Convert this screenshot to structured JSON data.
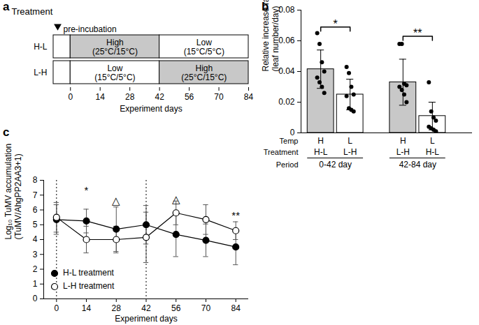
{
  "chart_data": [
    {
      "title": "a",
      "type": "gantt",
      "row_header": "Treatment",
      "rows": [
        "H-L",
        "L-H"
      ],
      "preincubation": {
        "label": "pre-incubation",
        "start": -8,
        "end": 0
      },
      "segments": [
        {
          "row": "H-L",
          "start": 0,
          "end": 42,
          "label": "High\n(25°C/15°C)",
          "color": "#c8c8c8"
        },
        {
          "row": "H-L",
          "start": 42,
          "end": 84,
          "label": "Low\n(15°C/5°C)",
          "color": "#ffffff"
        },
        {
          "row": "L-H",
          "start": 0,
          "end": 42,
          "label": "Low\n(15°C/5°C)",
          "color": "#ffffff"
        },
        {
          "row": "L-H",
          "start": 42,
          "end": 84,
          "label": "High\n(25°C/15°C)",
          "color": "#c8c8c8"
        }
      ],
      "x_label": "Experiment days",
      "xlim": [
        -8,
        84
      ],
      "xticks": [
        0,
        14,
        28,
        42,
        56,
        70,
        84
      ]
    },
    {
      "title": "b",
      "type": "bar",
      "y_label": "Relative increase rate\n(leaf number/day)",
      "row_labels": [
        "Temp",
        "Treatment",
        "Period"
      ],
      "categories": [
        "H",
        "L",
        "H",
        "L"
      ],
      "treatments": [
        "H-L",
        "L-H",
        "L-H",
        "H-L"
      ],
      "periods": [
        "0-42 day",
        "42-84 day"
      ],
      "values": [
        0.0415,
        0.025,
        0.033,
        0.011
      ],
      "errors": [
        0.0125,
        0.01,
        0.015,
        0.009
      ],
      "points": [
        [
          0.065,
          0.058,
          0.046,
          0.04,
          0.036,
          0.033,
          0.03,
          0.026
        ],
        [
          0.043,
          0.039,
          0.03,
          0.025,
          0.024,
          0.016,
          0.015,
          0.014
        ],
        [
          0.058,
          0.058,
          0.032,
          0.031,
          0.03,
          0.028,
          0.025,
          0.02
        ],
        [
          0.033,
          0.014,
          0.01,
          0.008,
          0.004,
          0.003,
          0.002,
          0.001
        ]
      ],
      "colors": [
        "#c8c8c8",
        "#ffffff",
        "#c8c8c8",
        "#ffffff"
      ],
      "significance": [
        {
          "text": "*",
          "between": [
            0,
            1
          ],
          "y": 0.069
        },
        {
          "text": "**",
          "between": [
            2,
            3
          ],
          "y": 0.063
        }
      ],
      "ylim": [
        0,
        0.08
      ],
      "yticks": [
        0,
        0.02,
        0.04,
        0.06,
        0.08
      ],
      "tick_labels": "y"
    },
    {
      "title": "c",
      "type": "line",
      "x_label": "Experiment days",
      "y_label": "Log₁₀ TuMV accumulation\n(TuMV/AhgPP2AA3+1)",
      "x": [
        0,
        14,
        28,
        42,
        56,
        70,
        84
      ],
      "series": [
        {
          "name": "H-L treatment",
          "color": "#000000",
          "marker": "circle",
          "values": [
            5.35,
            5.25,
            4.7,
            5.0,
            4.35,
            3.95,
            3.5
          ],
          "errors": [
            1.0,
            0.8,
            1.5,
            1.3,
            1.5,
            1.1,
            1.2
          ]
        },
        {
          "name": "L-H treatment",
          "color": "#ffffff",
          "marker": "circle",
          "values": [
            5.5,
            4.0,
            4.0,
            4.15,
            5.8,
            5.35,
            4.6
          ],
          "errors": [
            1.0,
            0.9,
            0.9,
            1.7,
            0.8,
            1.0,
            0.6
          ]
        }
      ],
      "vlines": [
        0,
        42
      ],
      "line_style": "dotted",
      "annotations": [
        {
          "text": "*",
          "x": 14,
          "y": 7.3
        },
        {
          "text": "△",
          "x": 28,
          "y": 6.6
        },
        {
          "text": "△",
          "x": 56,
          "y": 6.7
        },
        {
          "text": "**",
          "x": 84,
          "y": 5.6
        }
      ],
      "xlim": [
        -6,
        90
      ],
      "xticks": [
        0,
        14,
        28,
        42,
        56,
        70,
        84
      ],
      "ylim": [
        0,
        8
      ],
      "yticks": [
        0,
        1,
        2,
        3,
        4,
        5,
        6,
        7,
        8
      ],
      "legend": "bottom-left"
    }
  ]
}
